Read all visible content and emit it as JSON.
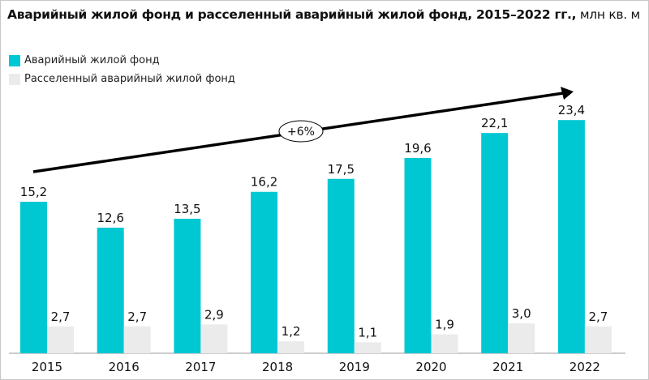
{
  "chart_data": {
    "type": "bar",
    "title": "Аварийный жилой фонд и расселенный аварийный жилой фонд, 2015–2022 гг.,",
    "unit": "млн кв. м",
    "categories": [
      "2015",
      "2016",
      "2017",
      "2018",
      "2019",
      "2020",
      "2021",
      "2022"
    ],
    "series": [
      {
        "name": "Аварийный жилой фонд",
        "color": "#00c8d2",
        "values": [
          15.2,
          12.6,
          13.5,
          16.2,
          17.5,
          19.6,
          22.1,
          23.4
        ],
        "labels": [
          "15,2",
          "12,6",
          "13,5",
          "16,2",
          "17,5",
          "19,6",
          "22,1",
          "23,4"
        ]
      },
      {
        "name": "Расселенный аварийный жилой фонд",
        "color": "#ebebeb",
        "values": [
          2.7,
          2.7,
          2.9,
          1.2,
          1.1,
          1.9,
          3.0,
          2.7
        ],
        "labels": [
          "2,7",
          "2,7",
          "2,9",
          "1,2",
          "1,1",
          "1,9",
          "3,0",
          "2,7"
        ]
      }
    ],
    "annotation": "+6%",
    "legend": "top-left",
    "grid": false
  }
}
